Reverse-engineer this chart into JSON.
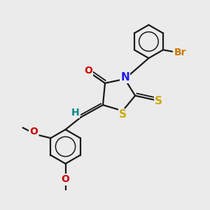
{
  "bg_color": "#ebebeb",
  "bond_color": "#1a1a1a",
  "bond_width": 1.6,
  "atoms": {
    "N": {
      "color": "#1a1aee",
      "fontsize": 11
    },
    "S": {
      "color": "#ccaa00",
      "fontsize": 11
    },
    "O": {
      "color": "#cc0000",
      "fontsize": 10
    },
    "Br": {
      "color": "#cc7700",
      "fontsize": 10
    },
    "H": {
      "color": "#008888",
      "fontsize": 10
    }
  },
  "methoxy_fontsize": 9,
  "methoxy_color": "#cc0000"
}
